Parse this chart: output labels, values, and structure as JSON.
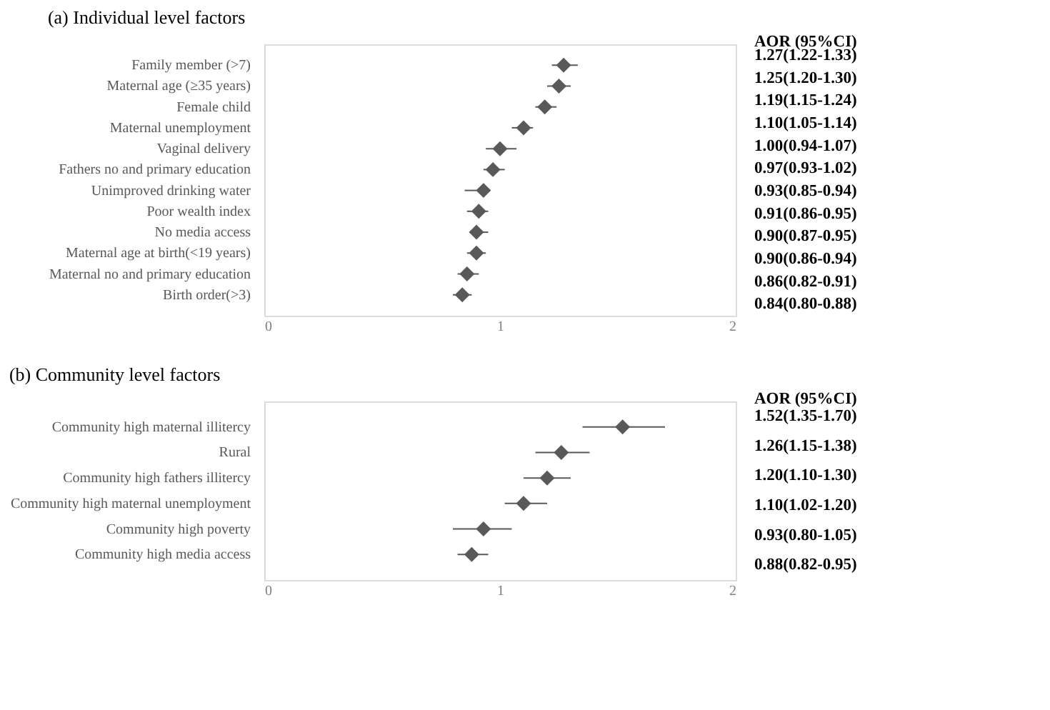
{
  "chart_data": [
    {
      "type": "scatter",
      "orientation": "horizontal",
      "title": "(a) Individual level factors",
      "annotations": [
        "AOR (95%CI)"
      ],
      "marker": "diamond",
      "color": "#595959",
      "grid": false,
      "xlim": [
        0,
        2
      ],
      "xticks": [
        0,
        1,
        2
      ],
      "categories": [
        "Family member (>7)",
        "Maternal age (≥35 years)",
        "Female child",
        "Maternal unemployment",
        "Vaginal delivery",
        "Fathers no and primary education",
        "Unimproved drinking water",
        "Poor wealth index",
        "No media access",
        "Maternal age at birth(<19 years)",
        "Maternal no and primary education",
        "Birth order(>3)"
      ],
      "values": [
        1.27,
        1.25,
        1.19,
        1.1,
        1.0,
        0.97,
        0.93,
        0.91,
        0.9,
        0.9,
        0.86,
        0.84
      ],
      "errors": [
        [
          1.22,
          1.33
        ],
        [
          1.2,
          1.3
        ],
        [
          1.15,
          1.24
        ],
        [
          1.05,
          1.14
        ],
        [
          0.94,
          1.07
        ],
        [
          0.93,
          1.02
        ],
        [
          0.85,
          0.94
        ],
        [
          0.86,
          0.95
        ],
        [
          0.87,
          0.95
        ],
        [
          0.86,
          0.94
        ],
        [
          0.82,
          0.91
        ],
        [
          0.8,
          0.88
        ]
      ],
      "value_labels": [
        "1.27(1.22-1.33)",
        "1.25(1.20-1.30)",
        "1.19(1.15-1.24)",
        "1.10(1.05-1.14)",
        "1.00(0.94-1.07)",
        "0.97(0.93-1.02)",
        "0.93(0.85-0.94)",
        "0.91(0.86-0.95)",
        "0.90(0.87-0.95)",
        "0.90(0.86-0.94)",
        "0.86(0.82-0.91)",
        "0.84(0.80-0.88)"
      ]
    },
    {
      "type": "scatter",
      "orientation": "horizontal",
      "title": "(b) Community level factors",
      "annotations": [
        "AOR (95%CI)"
      ],
      "marker": "diamond",
      "color": "#595959",
      "grid": false,
      "xlim": [
        0,
        2
      ],
      "xticks": [
        0,
        1,
        2
      ],
      "categories": [
        "Community high maternal illitercy",
        "Rural",
        "Community high fathers illitercy",
        "Community high maternal unemployment",
        "Community high poverty",
        "Community high media access"
      ],
      "values": [
        1.52,
        1.26,
        1.2,
        1.1,
        0.93,
        0.88
      ],
      "errors": [
        [
          1.35,
          1.7
        ],
        [
          1.15,
          1.38
        ],
        [
          1.1,
          1.3
        ],
        [
          1.02,
          1.2
        ],
        [
          0.8,
          1.05
        ],
        [
          0.82,
          0.95
        ]
      ],
      "value_labels": [
        "1.52(1.35-1.70)",
        "1.26(1.15-1.38)",
        "1.20(1.10-1.30)",
        "1.10(1.02-1.20)",
        "0.93(0.80-1.05)",
        "0.88(0.82-0.95)"
      ]
    }
  ]
}
